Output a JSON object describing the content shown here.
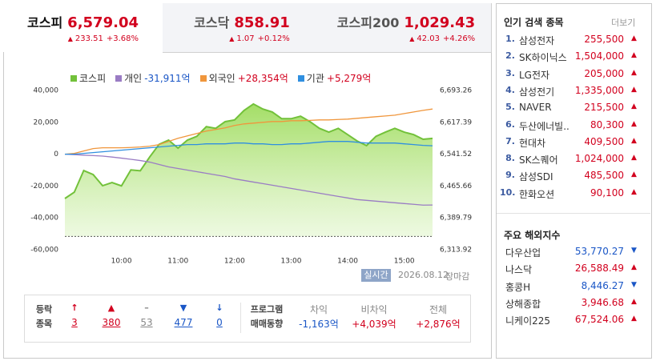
{
  "tabs": [
    {
      "name": "코스피",
      "value": "6,579.04",
      "arrow": "▲",
      "change": "233.51",
      "rate": "+3.68%"
    },
    {
      "name": "코스닥",
      "value": "858.91",
      "arrow": "▲",
      "change": "1.07",
      "rate": "+0.12%"
    },
    {
      "name": "코스피200",
      "value": "1,029.43",
      "arrow": "▲",
      "change": "42.03",
      "rate": "+4.26%"
    }
  ],
  "chart_data": {
    "type": "line",
    "categories": [
      null,
      null,
      null,
      null,
      null,
      null,
      "10:00",
      null,
      null,
      null,
      null,
      null,
      "11:00",
      null,
      null,
      null,
      null,
      null,
      "12:00",
      null,
      null,
      null,
      null,
      null,
      "13:00",
      null,
      null,
      null,
      null,
      null,
      "14:00",
      null,
      null,
      null,
      null,
      null,
      "15:00",
      null,
      null,
      null
    ],
    "series": [
      {
        "name": "코스피",
        "color": "#72c13a",
        "axis": "y2",
        "area": true,
        "values": [
          6435.9,
          6451.0,
          6502.6,
          6493.0,
          6466.4,
          6474.0,
          6466.0,
          6504.0,
          6502.0,
          6535.0,
          6565.0,
          6575.0,
          6556.0,
          6575.0,
          6584.0,
          6607.0,
          6603.0,
          6619.0,
          6623.0,
          6645.6,
          6661.0,
          6649.0,
          6642.0,
          6626.0,
          6626.0,
          6632.0,
          6619.0,
          6603.0,
          6594.0,
          6603.0,
          6588.0,
          6573.0,
          6562.0,
          6584.0,
          6594.0,
          6603.0,
          6594.0,
          6588.0,
          6577.0,
          6579.04
        ]
      },
      {
        "name": "개인",
        "legend_value": "-31,911억",
        "color": "#9a7cc4",
        "axis": "y",
        "values": [
          0,
          -300,
          -600,
          -900,
          -1200,
          -1800,
          -2500,
          -3200,
          -4000,
          -5000,
          -6500,
          -8000,
          -9000,
          -10000,
          -11000,
          -12000,
          -13000,
          -14000,
          -15500,
          -16500,
          -17500,
          -18500,
          -19500,
          -20500,
          -21500,
          -22500,
          -23500,
          -24500,
          -25500,
          -26500,
          -27500,
          -28500,
          -29000,
          -29500,
          -30000,
          -30500,
          -31000,
          -31500,
          -32000,
          -31911
        ]
      },
      {
        "name": "외국인",
        "legend_value": "+28,354억",
        "color": "#f0963c",
        "axis": "y",
        "values": [
          0,
          500,
          2000,
          3500,
          4000,
          4000,
          4000,
          4200,
          4500,
          5000,
          6000,
          8000,
          10000,
          11500,
          13000,
          14500,
          15500,
          16500,
          18000,
          19000,
          19500,
          20000,
          20500,
          20500,
          21000,
          21000,
          21200,
          21500,
          21500,
          21800,
          22000,
          22500,
          23000,
          23500,
          24000,
          24500,
          25500,
          26500,
          27500,
          28354
        ]
      },
      {
        "name": "기관",
        "legend_value": "+5,279억",
        "color": "#2f8fe0",
        "axis": "y",
        "values": [
          0,
          0,
          500,
          1000,
          1500,
          2000,
          2500,
          3000,
          3500,
          4000,
          4500,
          5000,
          5500,
          6000,
          6000,
          6500,
          6500,
          6500,
          7000,
          7000,
          6500,
          6500,
          6000,
          6000,
          6500,
          6500,
          7000,
          7500,
          8000,
          8000,
          8000,
          7500,
          7000,
          7000,
          7000,
          7000,
          6500,
          6000,
          5500,
          5279
        ]
      }
    ],
    "ylim": [
      -60000,
      40000
    ],
    "yticks": [
      {
        "value": 40000,
        "label": "40,000"
      },
      {
        "value": 20000,
        "label": "20,000"
      },
      0,
      {
        "value": -20000,
        "label": "-20,000"
      },
      {
        "value": -40000,
        "label": "-40,000"
      },
      {
        "value": -60000,
        "label": "-60,000"
      }
    ],
    "y2lim": [
      6313.92,
      6693.26
    ],
    "y2ticks": [
      {
        "value": 6693.26,
        "label": "6,693.26"
      },
      {
        "value": 6617.39,
        "label": "6,617.39"
      },
      {
        "value": 6541.52,
        "label": "6,541.52"
      },
      {
        "value": 6465.66,
        "label": "6,465.66"
      },
      {
        "value": 6389.79,
        "label": "6,389.79"
      },
      {
        "value": 6313.92,
        "label": "6,313.92"
      }
    ],
    "baseline": 6345.53,
    "grid": false
  },
  "status": {
    "badge": "실시간",
    "date": "2026.08.12",
    "state": "장마감"
  },
  "breadth": {
    "label": [
      "등락",
      "종목"
    ],
    "items": [
      {
        "symbol": "↑",
        "count": "3",
        "color": "#d2001e"
      },
      {
        "symbol": "▲",
        "count": "380",
        "color": "#d2001e"
      },
      {
        "symbol": "–",
        "count": "53",
        "color": "#888888"
      },
      {
        "symbol": "▼",
        "count": "477",
        "color": "#1a56c6"
      },
      {
        "symbol": "↓",
        "count": "0",
        "color": "#1a56c6"
      }
    ]
  },
  "program": {
    "label": [
      "프로그램",
      "매매동향"
    ],
    "columns": [
      {
        "header": "차익",
        "value": "-1,163억",
        "color": "#1a56c6"
      },
      {
        "header": "비차익",
        "value": "+4,039억",
        "color": "#d2001e"
      },
      {
        "header": "전체",
        "value": "+2,876억",
        "color": "#d2001e"
      }
    ]
  },
  "popular": {
    "title": "인기 검색 종목",
    "more": "더보기",
    "rows": [
      {
        "rank": "1.",
        "name": "삼성전자",
        "price": "255,500",
        "arrow": "▲"
      },
      {
        "rank": "2.",
        "name": "SK하이닉스",
        "price": "1,504,000",
        "arrow": "▲"
      },
      {
        "rank": "3.",
        "name": "LG전자",
        "price": "205,000",
        "arrow": "▲"
      },
      {
        "rank": "4.",
        "name": "삼성전기",
        "price": "1,335,000",
        "arrow": "▲"
      },
      {
        "rank": "5.",
        "name": "NAVER",
        "price": "215,500",
        "arrow": "▲"
      },
      {
        "rank": "6.",
        "name": "두산에너빌..",
        "price": "80,300",
        "arrow": "▲"
      },
      {
        "rank": "7.",
        "name": "현대차",
        "price": "409,500",
        "arrow": "▲"
      },
      {
        "rank": "8.",
        "name": "SK스퀘어",
        "price": "1,024,000",
        "arrow": "▲"
      },
      {
        "rank": "9.",
        "name": "삼성SDI",
        "price": "485,500",
        "arrow": "▲"
      },
      {
        "rank": "10.",
        "name": "한화오션",
        "price": "90,100",
        "arrow": "▲"
      }
    ]
  },
  "world": {
    "title": "주요 해외지수",
    "rows": [
      {
        "name": "다우산업",
        "value": "53,770.27",
        "arrow": "▼"
      },
      {
        "name": "나스닥",
        "value": "26,588.49",
        "arrow": "▲"
      },
      {
        "name": "홍콩H",
        "value": "8,446.27",
        "arrow": "▼"
      },
      {
        "name": "상해종합",
        "value": "3,946.68",
        "arrow": "▲"
      },
      {
        "name": "니케이225",
        "value": "67,524.06",
        "arrow": "▲"
      }
    ]
  }
}
